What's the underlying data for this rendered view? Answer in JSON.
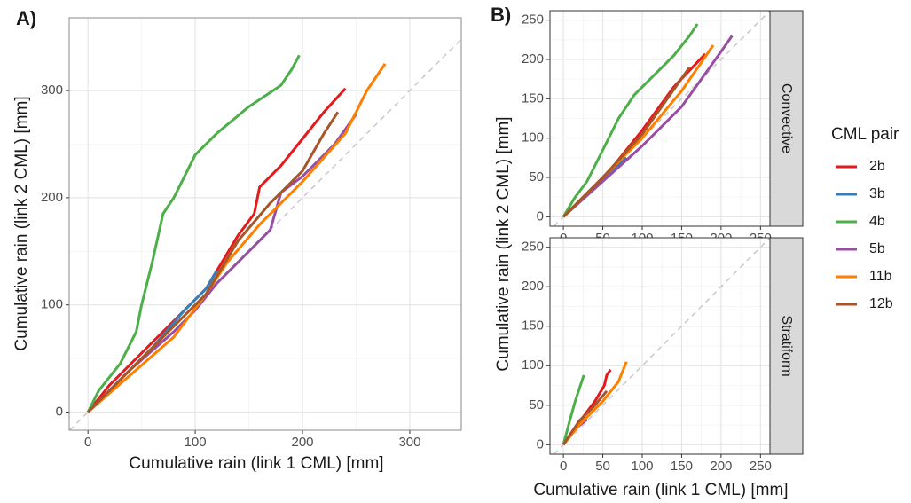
{
  "chart_data": [
    {
      "type": "line",
      "panel_label": "A)",
      "xlabel": "Cumulative rain (link 1 CML) [mm]",
      "ylabel": "Cumulative rain (link 2 CML) [mm]",
      "xlim": [
        -17.5,
        348
      ],
      "ylim": [
        -17,
        368
      ],
      "xticks": [
        0,
        100,
        200,
        300
      ],
      "yticks": [
        0,
        100,
        200,
        300
      ],
      "grid": true,
      "series": [
        {
          "name": "2b",
          "color": "#e41a1c",
          "x": [
            0,
            20,
            50,
            80,
            110,
            140,
            155,
            160,
            180,
            200,
            220,
            240
          ],
          "values": [
            0,
            25,
            55,
            85,
            115,
            165,
            185,
            210,
            230,
            255,
            280,
            302
          ]
        },
        {
          "name": "3b",
          "color": "#377eb8",
          "x": [
            0,
            30,
            60,
            90,
            110,
            120
          ],
          "values": [
            0,
            30,
            60,
            95,
            115,
            132
          ]
        },
        {
          "name": "4b",
          "color": "#4daf4a",
          "x": [
            0,
            10,
            30,
            45,
            50,
            60,
            70,
            80,
            90,
            100,
            120,
            150,
            180,
            190,
            197
          ],
          "values": [
            0,
            20,
            45,
            75,
            100,
            140,
            185,
            200,
            220,
            240,
            260,
            285,
            305,
            320,
            333
          ]
        },
        {
          "name": "5b",
          "color": "#984ea3",
          "x": [
            0,
            40,
            80,
            100,
            120,
            150,
            170,
            180,
            200,
            230,
            250
          ],
          "values": [
            0,
            40,
            75,
            95,
            120,
            150,
            170,
            205,
            220,
            250,
            278
          ]
        },
        {
          "name": "11b",
          "color": "#ff7f00",
          "x": [
            0,
            40,
            80,
            110,
            130,
            160,
            200,
            240,
            260,
            277
          ],
          "values": [
            0,
            35,
            70,
            110,
            140,
            175,
            215,
            260,
            300,
            325
          ]
        },
        {
          "name": "12b",
          "color": "#a65628",
          "x": [
            0,
            40,
            80,
            110,
            140,
            170,
            200,
            220,
            233
          ],
          "values": [
            0,
            40,
            80,
            110,
            160,
            195,
            225,
            260,
            280
          ]
        }
      ]
    },
    {
      "type": "line",
      "panel_label": "B)",
      "ylabel": "Cumulative rain (link 2 CML) [mm]",
      "strip": "Convective",
      "legend_title": "CML pair",
      "xlim": [
        -17,
        262
      ],
      "ylim": [
        -12,
        262
      ],
      "xticks": [
        0,
        50,
        100,
        150,
        200,
        250
      ],
      "yticks": [
        0,
        50,
        100,
        150,
        200,
        250
      ],
      "grid": true,
      "series": [
        {
          "name": "2b",
          "color": "#e41a1c",
          "x": [
            0,
            30,
            60,
            100,
            140,
            180
          ],
          "values": [
            0,
            30,
            60,
            110,
            165,
            207
          ]
        },
        {
          "name": "3b",
          "color": "#377eb8",
          "x": [
            0,
            40,
            80
          ],
          "values": [
            0,
            38,
            75
          ]
        },
        {
          "name": "4b",
          "color": "#4daf4a",
          "x": [
            0,
            15,
            30,
            50,
            70,
            90,
            110,
            140,
            160,
            170
          ],
          "values": [
            0,
            25,
            45,
            85,
            125,
            155,
            175,
            205,
            230,
            245
          ]
        },
        {
          "name": "5b",
          "color": "#984ea3",
          "x": [
            0,
            50,
            100,
            150,
            200,
            214
          ],
          "values": [
            0,
            45,
            90,
            140,
            210,
            230
          ]
        },
        {
          "name": "11b",
          "color": "#ff7f00",
          "x": [
            0,
            50,
            100,
            150,
            190
          ],
          "values": [
            0,
            50,
            100,
            160,
            218
          ]
        },
        {
          "name": "12b",
          "color": "#a65628",
          "x": [
            0,
            50,
            100,
            160
          ],
          "values": [
            0,
            50,
            105,
            190
          ]
        }
      ]
    },
    {
      "type": "line",
      "xlabel": "Cumulative rain (link 1 CML) [mm]",
      "strip": "Stratiform",
      "xlim": [
        -17,
        262
      ],
      "ylim": [
        -12,
        262
      ],
      "xticks": [
        0,
        50,
        100,
        150,
        200,
        250
      ],
      "yticks": [
        0,
        50,
        100,
        150,
        200,
        250
      ],
      "grid": true,
      "series": [
        {
          "name": "2b",
          "color": "#e41a1c",
          "x": [
            0,
            10,
            25,
            40,
            52,
            55,
            60
          ],
          "values": [
            0,
            15,
            35,
            55,
            75,
            88,
            95
          ]
        },
        {
          "name": "4b",
          "color": "#4daf4a",
          "x": [
            0,
            8,
            15,
            26
          ],
          "values": [
            0,
            30,
            55,
            88
          ]
        },
        {
          "name": "5b",
          "color": "#984ea3",
          "x": [
            0,
            15,
            30
          ],
          "values": [
            0,
            20,
            32
          ]
        },
        {
          "name": "11b",
          "color": "#ff7f00",
          "x": [
            0,
            20,
            50,
            70,
            80
          ],
          "values": [
            0,
            25,
            55,
            80,
            105
          ]
        },
        {
          "name": "12b",
          "color": "#a65628",
          "x": [
            0,
            20,
            40,
            55
          ],
          "values": [
            0,
            30,
            50,
            68
          ]
        }
      ]
    }
  ]
}
